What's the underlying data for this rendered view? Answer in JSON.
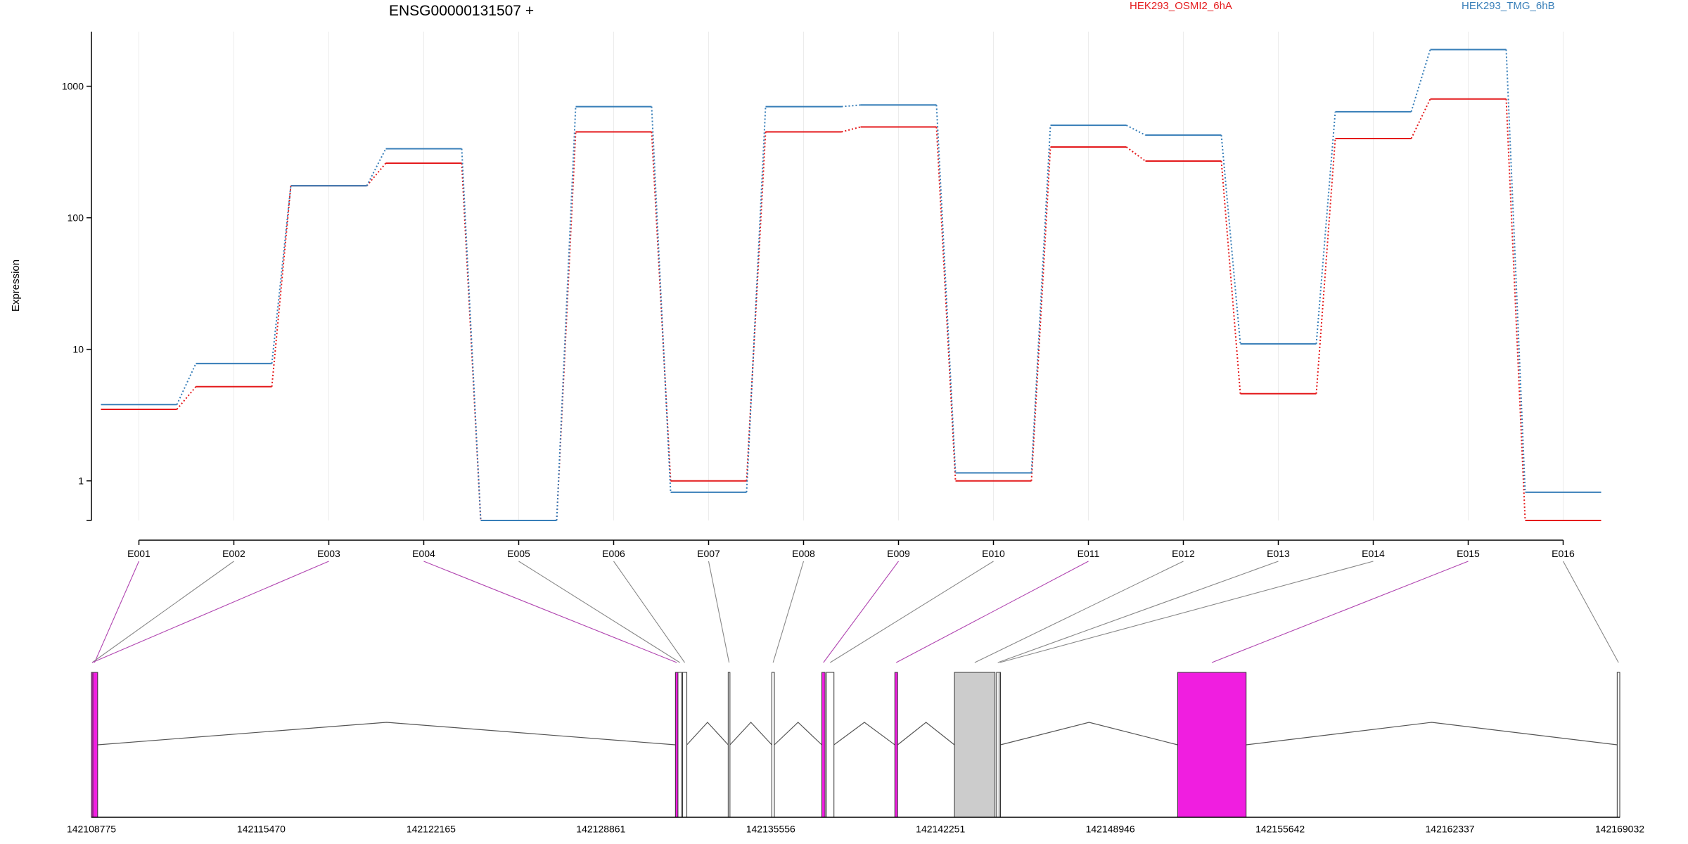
{
  "chart_data": {
    "type": "line",
    "title": "ENSG00000131507 +",
    "ylabel": "Expression",
    "yscale": "log",
    "ylim": [
      0.5,
      2600
    ],
    "yticks": [
      1,
      10,
      100,
      1000
    ],
    "ytick_labels": [
      "1",
      "10",
      "100",
      "1000"
    ],
    "grid": "vertical",
    "legend_position": "top-right",
    "categories": [
      "E001",
      "E002",
      "E003",
      "E004",
      "E005",
      "E006",
      "E007",
      "E008",
      "E009",
      "E010",
      "E011",
      "E012",
      "E013",
      "E014",
      "E015",
      "E016"
    ],
    "series": [
      {
        "name": "HEK293_OSMI2_6hA",
        "color": "#e41a1c",
        "values": [
          3.5,
          5.2,
          175,
          260,
          0.5,
          450,
          1.0,
          450,
          490,
          1.0,
          345,
          270,
          4.6,
          400,
          800,
          0.5
        ]
      },
      {
        "name": "HEK293_TMG_6hB",
        "color": "#377eb8",
        "values": [
          3.8,
          7.8,
          175,
          335,
          0.5,
          700,
          0.82,
          700,
          720,
          1.15,
          505,
          425,
          11,
          640,
          1900,
          0.82
        ]
      }
    ],
    "genomic_axis": {
      "ticks": [
        142108775,
        142115470,
        142122165,
        142128861,
        142135556,
        142142251,
        142148946,
        142155642,
        142162337,
        142169032
      ],
      "range": [
        142108775,
        142169032
      ],
      "exons": [
        {
          "id": "E001",
          "start": 142108775,
          "end": 142109020,
          "highlight": true
        },
        {
          "id": "E002",
          "start": 142108775,
          "end": 142108800,
          "highlight": false
        },
        {
          "id": "E003",
          "start": 142108775,
          "end": 142108800,
          "highlight": true
        },
        {
          "id": "E004",
          "start": 142131800,
          "end": 142131900,
          "highlight": true
        },
        {
          "id": "E005",
          "start": 142131900,
          "end": 142132050,
          "highlight": false
        },
        {
          "id": "E006",
          "start": 142132080,
          "end": 142132250,
          "highlight": false
        },
        {
          "id": "E007",
          "start": 142133880,
          "end": 142133950,
          "highlight": false
        },
        {
          "id": "E008",
          "start": 142135600,
          "end": 142135700,
          "highlight": false
        },
        {
          "id": "E009",
          "start": 142137570,
          "end": 142137700,
          "highlight": true
        },
        {
          "id": "E010",
          "start": 142137750,
          "end": 142138050,
          "highlight": false
        },
        {
          "id": "E011",
          "start": 142140450,
          "end": 142140560,
          "highlight": true
        },
        {
          "id": "E012",
          "start": 142142800,
          "end": 142144400,
          "highlight": false
        },
        {
          "id": "E013",
          "start": 142144460,
          "end": 142144560,
          "highlight": false
        },
        {
          "id": "E014",
          "start": 142144560,
          "end": 142144600,
          "highlight": false
        },
        {
          "id": "E015",
          "start": 142151600,
          "end": 142154300,
          "highlight": true
        },
        {
          "id": "E016",
          "start": 142168930,
          "end": 142169032,
          "highlight": false
        }
      ]
    }
  }
}
